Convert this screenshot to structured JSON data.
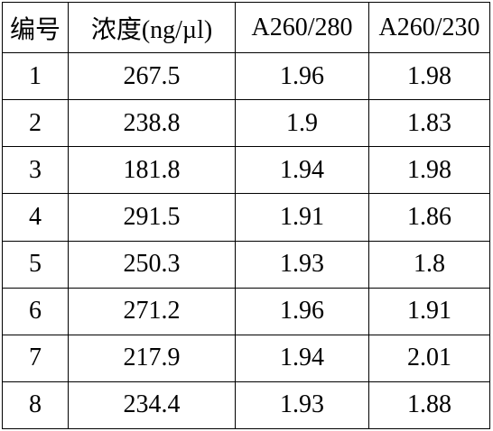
{
  "table": {
    "header": [
      "编号",
      "浓度(ng/µl)",
      "A260/280",
      "A260/230"
    ],
    "rows": [
      [
        "1",
        "267.5",
        "1.96",
        "1.98"
      ],
      [
        "2",
        "238.8",
        "1.9",
        "1.83"
      ],
      [
        "3",
        "181.8",
        "1.94",
        "1.98"
      ],
      [
        "4",
        "291.5",
        "1.91",
        "1.86"
      ],
      [
        "5",
        "250.3",
        "1.93",
        "1.8"
      ],
      [
        "6",
        "271.2",
        "1.96",
        "1.91"
      ],
      [
        "7",
        "217.9",
        "1.94",
        "2.01"
      ],
      [
        "8",
        "234.4",
        "1.93",
        "1.88"
      ]
    ]
  }
}
